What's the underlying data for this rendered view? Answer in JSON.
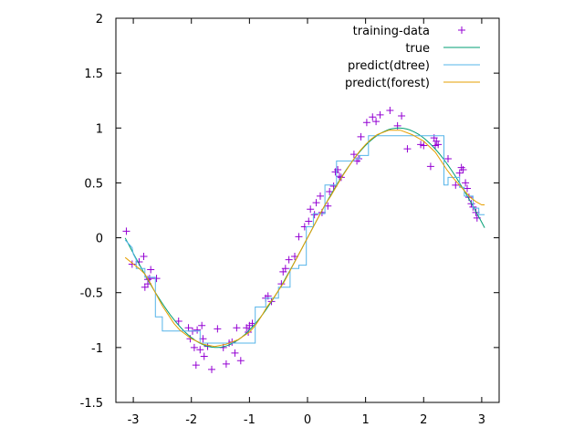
{
  "chart_data": {
    "type": "line",
    "title": "",
    "xlabel": "",
    "ylabel": "",
    "xlim": [
      -3.3,
      3.3
    ],
    "ylim": [
      -1.5,
      2
    ],
    "xticks": [
      -3,
      -2,
      -1,
      0,
      1,
      2,
      3
    ],
    "xtick_labels": [
      "-3",
      "-2",
      "-1",
      "0",
      "1",
      "2",
      "3"
    ],
    "yticks": [
      -1.5,
      -1,
      -0.5,
      0,
      0.5,
      1,
      1.5,
      2
    ],
    "ytick_labels": [
      "-1.5",
      "-1",
      "-0.5",
      "0",
      "0.5",
      "1",
      "1.5",
      "2"
    ],
    "grid": false,
    "legend_position": "top-right",
    "series": [
      {
        "name": "training-data",
        "kind": "points",
        "color": "#9400d3",
        "x": [
          -3.12,
          -3.02,
          -2.9,
          -2.82,
          -2.8,
          -2.75,
          -2.75,
          -2.72,
          -2.7,
          -2.6,
          -2.22,
          -2.05,
          -2.02,
          -1.98,
          -1.95,
          -1.92,
          -1.9,
          -1.85,
          -1.82,
          -1.8,
          -1.78,
          -1.72,
          -1.65,
          -1.55,
          -1.45,
          -1.4,
          -1.35,
          -1.3,
          -1.25,
          -1.22,
          -1.15,
          -1.05,
          -1.02,
          -1.0,
          -0.95,
          -0.72,
          -0.68,
          -0.62,
          -0.45,
          -0.42,
          -0.38,
          -0.32,
          -0.22,
          -0.15,
          -0.05,
          0.02,
          0.05,
          0.12,
          0.15,
          0.22,
          0.25,
          0.35,
          0.38,
          0.45,
          0.48,
          0.52,
          0.55,
          0.58,
          0.8,
          0.85,
          0.88,
          0.92,
          1.02,
          1.12,
          1.18,
          1.25,
          1.42,
          1.55,
          1.62,
          1.72,
          1.95,
          2.0,
          2.12,
          2.18,
          2.2,
          2.22,
          2.25,
          2.42,
          2.55,
          2.62,
          2.65,
          2.68,
          2.72,
          2.75,
          2.78,
          2.82,
          2.85,
          2.9,
          2.92
        ],
        "y": [
          0.06,
          -0.24,
          -0.22,
          -0.17,
          -0.45,
          -0.42,
          -0.38,
          -0.37,
          -0.29,
          -0.37,
          -0.76,
          -0.82,
          -0.92,
          -0.85,
          -1.0,
          -1.16,
          -0.84,
          -1.02,
          -0.8,
          -0.92,
          -1.08,
          -0.99,
          -1.2,
          -0.83,
          -1.0,
          -1.15,
          -0.96,
          -0.95,
          -1.05,
          -0.82,
          -1.12,
          -0.82,
          -0.86,
          -0.8,
          -0.78,
          -0.55,
          -0.53,
          -0.58,
          -0.42,
          -0.31,
          -0.28,
          -0.2,
          -0.17,
          0.01,
          0.1,
          0.15,
          0.26,
          0.21,
          0.32,
          0.38,
          0.23,
          0.29,
          0.42,
          0.47,
          0.6,
          0.62,
          0.56,
          0.55,
          0.76,
          0.7,
          0.72,
          0.92,
          1.05,
          1.1,
          1.06,
          1.12,
          1.16,
          1.02,
          1.11,
          0.81,
          0.85,
          0.84,
          0.65,
          0.91,
          0.84,
          0.88,
          0.85,
          0.72,
          0.48,
          0.59,
          0.64,
          0.62,
          0.5,
          0.45,
          0.37,
          0.31,
          0.28,
          0.23,
          0.18
        ]
      },
      {
        "name": "true",
        "kind": "line",
        "color": "#009e73",
        "function": "sin",
        "x_range": [
          -3.14,
          3.05
        ]
      },
      {
        "name": "predict(dtree)",
        "kind": "step",
        "color": "#56b4e9",
        "x": [
          -3.14,
          -3.02,
          -3.0,
          -2.95,
          -2.95,
          -2.8,
          -2.8,
          -2.62,
          -2.62,
          -2.5,
          -2.5,
          -1.85,
          -1.85,
          -0.9,
          -0.9,
          -0.72,
          -0.72,
          -0.5,
          -0.5,
          -0.3,
          -0.3,
          -0.15,
          -0.15,
          -0.02,
          -0.02,
          0.1,
          0.1,
          0.3,
          0.3,
          0.5,
          0.5,
          0.8,
          0.8,
          0.9,
          0.9,
          1.05,
          1.05,
          1.12,
          1.12,
          2.35,
          2.35,
          2.42,
          2.42,
          2.62,
          2.62,
          2.7,
          2.7,
          2.85,
          2.85,
          2.95,
          2.95,
          3.05
        ],
        "y": [
          -0.02,
          -0.09,
          -0.15,
          -0.2,
          -0.28,
          -0.28,
          -0.36,
          -0.36,
          -0.72,
          -0.72,
          -0.85,
          -0.85,
          -0.96,
          -0.96,
          -0.63,
          -0.63,
          -0.55,
          -0.55,
          -0.45,
          -0.45,
          -0.28,
          -0.28,
          -0.25,
          -0.25,
          0.1,
          0.1,
          0.22,
          0.22,
          0.48,
          0.48,
          0.7,
          0.7,
          0.72,
          0.72,
          0.75,
          0.75,
          0.93,
          0.93,
          0.93,
          0.93,
          0.48,
          0.48,
          0.55,
          0.55,
          0.46,
          0.46,
          0.38,
          0.38,
          0.27,
          0.27,
          0.21,
          0.21
        ]
      },
      {
        "name": "predict(forest)",
        "kind": "line",
        "color": "#e69f00",
        "x": [
          -3.14,
          -3.0,
          -2.9,
          -2.8,
          -2.7,
          -2.6,
          -2.5,
          -2.4,
          -2.3,
          -2.2,
          -2.0,
          -1.8,
          -1.6,
          -1.4,
          -1.2,
          -1.0,
          -0.9,
          -0.8,
          -0.7,
          -0.6,
          -0.5,
          -0.4,
          -0.3,
          -0.2,
          -0.1,
          0.0,
          0.1,
          0.2,
          0.3,
          0.4,
          0.5,
          0.6,
          0.7,
          0.8,
          0.9,
          1.0,
          1.1,
          1.2,
          1.4,
          1.6,
          1.8,
          2.0,
          2.2,
          2.3,
          2.4,
          2.5,
          2.6,
          2.7,
          2.8,
          2.9,
          3.0,
          3.05
        ],
        "y": [
          -0.18,
          -0.24,
          -0.28,
          -0.33,
          -0.42,
          -0.52,
          -0.62,
          -0.7,
          -0.78,
          -0.84,
          -0.92,
          -0.97,
          -0.99,
          -0.97,
          -0.93,
          -0.86,
          -0.8,
          -0.72,
          -0.63,
          -0.56,
          -0.48,
          -0.4,
          -0.3,
          -0.2,
          -0.1,
          0.0,
          0.1,
          0.2,
          0.3,
          0.38,
          0.47,
          0.56,
          0.64,
          0.72,
          0.79,
          0.85,
          0.9,
          0.94,
          0.98,
          0.98,
          0.94,
          0.88,
          0.78,
          0.7,
          0.62,
          0.55,
          0.49,
          0.43,
          0.37,
          0.33,
          0.3,
          0.3
        ]
      }
    ]
  }
}
